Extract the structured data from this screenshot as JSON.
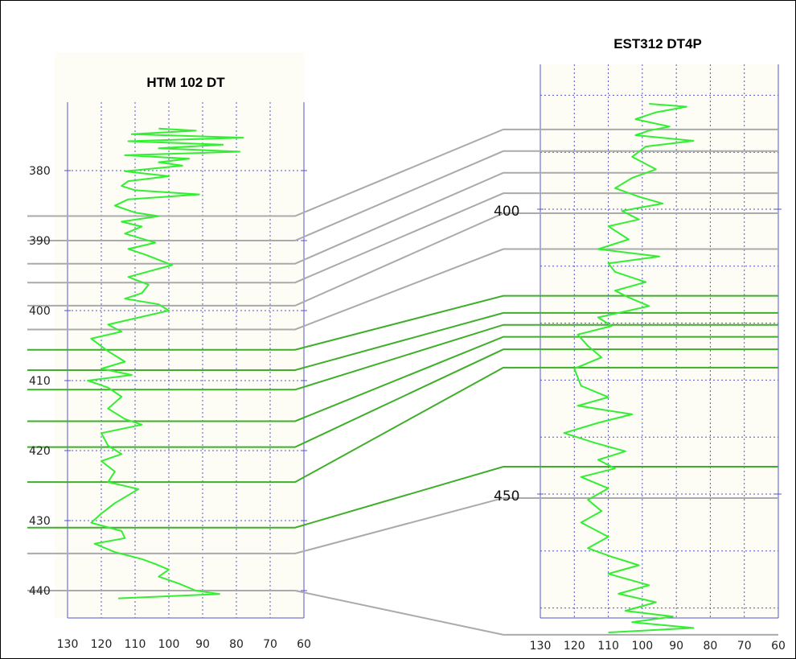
{
  "chart_data": [
    {
      "type": "line",
      "title": "HTM 102 DT",
      "x_ticks": [
        130,
        120,
        110,
        100,
        90,
        80,
        70,
        60
      ],
      "xlim": [
        130,
        60
      ],
      "depth_ticks": [
        380,
        390,
        400,
        410,
        420,
        430,
        440
      ],
      "ylim": [
        373,
        442
      ],
      "grid": true,
      "series": [
        {
          "values": [
            [
              103,
              374.0
            ],
            [
              92,
              374.3
            ],
            [
              111,
              374.8
            ],
            [
              78,
              375.3
            ],
            [
              112,
              375.8
            ],
            [
              84,
              376.3
            ],
            [
              103,
              376.8
            ],
            [
              79,
              377.3
            ],
            [
              113,
              377.8
            ],
            [
              94,
              378.3
            ],
            [
              103,
              378.8
            ],
            [
              96,
              379.3
            ],
            [
              113,
              380.1
            ],
            [
              100,
              380.8
            ],
            [
              112,
              381.5
            ],
            [
              114,
              382.2
            ],
            [
              110,
              382.8
            ],
            [
              91,
              383.4
            ],
            [
              112,
              384.1
            ],
            [
              116,
              385.0
            ],
            [
              110,
              386.0
            ],
            [
              103,
              386.5
            ],
            [
              114,
              387.3
            ],
            [
              108,
              388.0
            ],
            [
              113,
              389.0
            ],
            [
              104,
              390.3
            ],
            [
              112,
              391.2
            ],
            [
              107,
              392.0
            ],
            [
              99,
              393.5
            ],
            [
              112,
              395.2
            ],
            [
              106,
              396.3
            ],
            [
              108,
              397.5
            ],
            [
              113,
              398.3
            ],
            [
              103,
              399.1
            ],
            [
              100,
              400.0
            ],
            [
              118,
              402.0
            ],
            [
              114,
              403.0
            ],
            [
              123,
              404.0
            ],
            [
              118,
              405.8
            ],
            [
              113,
              407.3
            ],
            [
              120,
              408.3
            ],
            [
              111,
              409.2
            ],
            [
              124,
              410.0
            ],
            [
              118,
              411.0
            ],
            [
              114,
              412.3
            ],
            [
              118,
              414.0
            ],
            [
              113,
              415.5
            ],
            [
              108,
              416.3
            ],
            [
              120,
              417.5
            ],
            [
              118,
              419.3
            ],
            [
              114,
              420.5
            ],
            [
              120,
              421.5
            ],
            [
              116,
              423.0
            ],
            [
              118,
              424.5
            ],
            [
              109,
              425.5
            ],
            [
              116,
              427.5
            ],
            [
              120,
              429.0
            ],
            [
              123,
              430.3
            ],
            [
              114,
              431.5
            ],
            [
              113,
              432.5
            ],
            [
              122,
              433.3
            ],
            [
              116,
              434.5
            ],
            [
              108,
              435.5
            ],
            [
              104,
              436.2
            ],
            [
              100,
              437.0
            ],
            [
              103,
              438.0
            ],
            [
              97,
              439.0
            ],
            [
              92,
              440.0
            ],
            [
              85,
              440.5
            ],
            [
              115,
              441.1
            ]
          ]
        }
      ]
    },
    {
      "type": "line",
      "title": "EST312 DT4P",
      "x_ticks": [
        130,
        120,
        110,
        100,
        90,
        80,
        70,
        60
      ],
      "xlim": [
        130,
        60
      ],
      "depth_ticks": [
        400,
        450
      ],
      "ylim": [
        380,
        483
      ],
      "grid": true,
      "series": [
        {
          "values": [
            [
              98,
              381.5
            ],
            [
              87,
              382.0
            ],
            [
              96,
              383.0
            ],
            [
              102,
              384.2
            ],
            [
              92,
              385.5
            ],
            [
              98,
              386.2
            ],
            [
              102,
              387.0
            ],
            [
              85,
              388.0
            ],
            [
              99,
              389.0
            ],
            [
              103,
              390.8
            ],
            [
              96,
              393.0
            ],
            [
              103,
              394.5
            ],
            [
              108,
              396.3
            ],
            [
              101,
              397.8
            ],
            [
              94,
              399.0
            ],
            [
              106,
              400.3
            ],
            [
              101,
              401.8
            ],
            [
              110,
              403.0
            ],
            [
              104,
              405.3
            ],
            [
              113,
              407.0
            ],
            [
              95,
              408.3
            ],
            [
              110,
              409.5
            ],
            [
              108,
              411.0
            ],
            [
              99,
              412.8
            ],
            [
              108,
              414.3
            ],
            [
              104,
              415.5
            ],
            [
              98,
              417.0
            ],
            [
              113,
              419.0
            ],
            [
              109,
              420.5
            ],
            [
              119,
              422.0
            ],
            [
              116,
              424.0
            ],
            [
              112,
              426.0
            ],
            [
              120,
              428.0
            ],
            [
              118,
              431.0
            ],
            [
              110,
              433.0
            ],
            [
              119,
              434.5
            ],
            [
              103,
              436.0
            ],
            [
              113,
              437.5
            ],
            [
              123,
              439.3
            ],
            [
              114,
              441.0
            ],
            [
              105,
              442.5
            ],
            [
              113,
              444.0
            ],
            [
              108,
              445.5
            ],
            [
              118,
              447.0
            ],
            [
              110,
              449.0
            ],
            [
              116,
              451.0
            ],
            [
              112,
              453.0
            ],
            [
              118,
              455.0
            ],
            [
              110,
              457.5
            ],
            [
              116,
              459.5
            ],
            [
              109,
              461.0
            ],
            [
              101,
              462.5
            ],
            [
              110,
              464.0
            ],
            [
              98,
              466.0
            ],
            [
              107,
              467.5
            ],
            [
              96,
              469.0
            ],
            [
              105,
              470.5
            ],
            [
              91,
              471.5
            ],
            [
              103,
              472.5
            ],
            [
              85,
              473.5
            ],
            [
              110,
              474.3
            ]
          ]
        }
      ]
    }
  ],
  "correlation_lines": [
    {
      "color": "#aaaaaa",
      "left_depth": 386.5,
      "right_depth": 386.0
    },
    {
      "color": "#aaaaaa",
      "left_depth": 390.0,
      "right_depth": 389.8
    },
    {
      "color": "#aaaaaa",
      "left_depth": 393.3,
      "right_depth": 393.6
    },
    {
      "color": "#aaaaaa",
      "left_depth": 396.0,
      "right_depth": 397.2
    },
    {
      "color": "#aaaaaa",
      "left_depth": 399.3,
      "right_depth": 400.7
    },
    {
      "color": "#aaaaaa",
      "left_depth": 402.7,
      "right_depth": 407.0
    },
    {
      "color": "#3fae2a",
      "left_depth": 405.6,
      "right_depth": 415.2
    },
    {
      "color": "#3fae2a",
      "left_depth": 408.5,
      "right_depth": 418.2
    },
    {
      "color": "#3fae2a",
      "left_depth": 411.3,
      "right_depth": 420.3
    },
    {
      "color": "#3fae2a",
      "left_depth": 415.8,
      "right_depth": 422.4
    },
    {
      "color": "#3fae2a",
      "left_depth": 419.5,
      "right_depth": 424.6
    },
    {
      "color": "#3fae2a",
      "left_depth": 424.5,
      "right_depth": 427.8
    },
    {
      "color": "#3fae2a",
      "left_depth": 431.0,
      "right_depth": 445.2
    },
    {
      "color": "#aaaaaa",
      "left_depth": 434.7,
      "right_depth": 450.7
    },
    {
      "color": "#aaaaaa",
      "left_depth": 440.0,
      "right_depth": 474.7
    }
  ],
  "colors": {
    "curve": "#33ee33",
    "panel_border": "#5555cc",
    "grid": "#5555cc",
    "correlation_gray": "#aaaaaa",
    "correlation_green": "#3fae2a"
  }
}
